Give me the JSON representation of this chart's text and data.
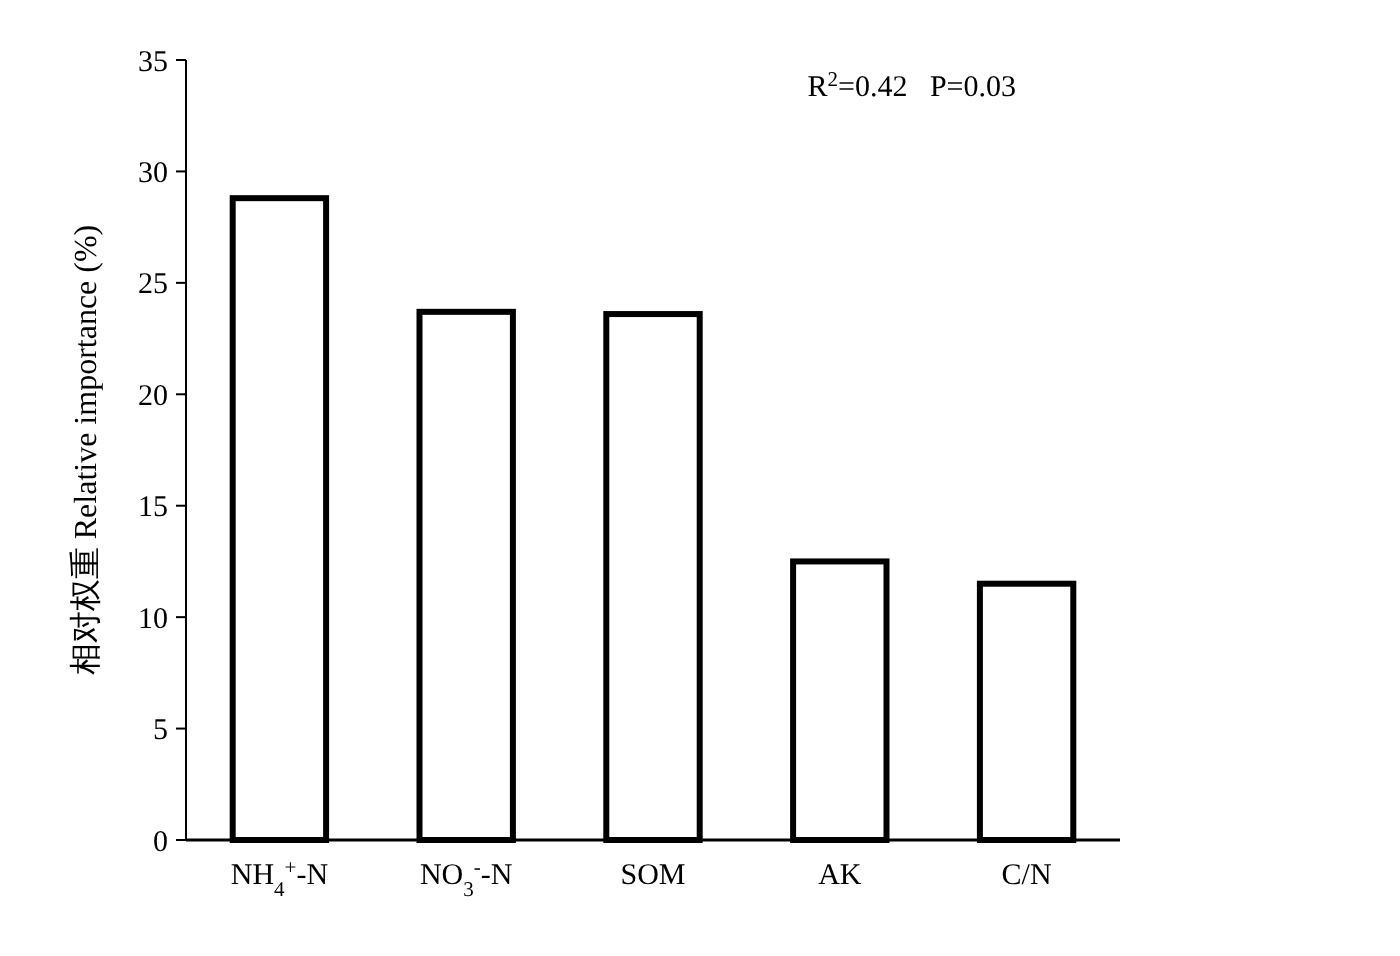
{
  "chart_data": {
    "type": "bar",
    "ylabel": "相对权重 Relative importance (%)",
    "categories": [
      "NH$_{4}$$^{+}$-N",
      "NO$_{3}$$^{-}$-N",
      "SOM",
      "AK",
      "C/N"
    ],
    "values": [
      28.8,
      23.7,
      23.6,
      12.5,
      11.5
    ],
    "color": "#ffffff",
    "ylim": [
      0,
      35
    ],
    "yticks": [
      0,
      5,
      10,
      15,
      20,
      25,
      30,
      35
    ],
    "annotations": [
      "R$^{2}$=0.42   P=0.03"
    ],
    "grid": false
  }
}
